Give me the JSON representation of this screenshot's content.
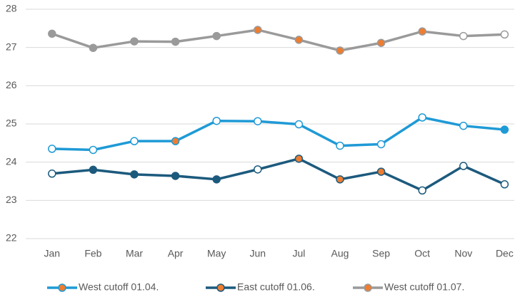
{
  "chart_data": {
    "type": "line",
    "categories": [
      "Jan",
      "Feb",
      "Mar",
      "Apr",
      "May",
      "Jun",
      "Jul",
      "Aug",
      "Sep",
      "Oct",
      "Nov",
      "Dec"
    ],
    "series": [
      {
        "name": "West cutoff 01.04.",
        "color": "#1f9ad6",
        "legend_marker_color": "#ed7d31",
        "values": [
          24.35,
          24.32,
          24.55,
          24.55,
          25.08,
          25.07,
          24.99,
          24.43,
          24.47,
          25.17,
          24.95,
          24.85
        ],
        "marker_colors": [
          "#ffffff",
          "#ffffff",
          "#ffffff",
          "#ed7d31",
          "#ffffff",
          "#ffffff",
          "#ffffff",
          "#ffffff",
          "#ffffff",
          "#ffffff",
          "#ffffff",
          "#1f9ad6"
        ]
      },
      {
        "name": "East cutoff 01.06.",
        "color": "#1c5a7d",
        "legend_marker_color": "#ed7d31",
        "values": [
          23.7,
          23.8,
          23.68,
          23.64,
          23.55,
          23.81,
          24.09,
          23.55,
          23.75,
          23.26,
          23.9,
          23.42
        ],
        "marker_colors": [
          "#ffffff",
          "#1c5a7d",
          "#1c5a7d",
          "#1c5a7d",
          "#1c5a7d",
          "#ffffff",
          "#ed7d31",
          "#ed7d31",
          "#ed7d31",
          "#ffffff",
          "#ffffff",
          "#ffffff"
        ]
      },
      {
        "name": "West cutoff 01.07.",
        "color": "#9a9a9a",
        "legend_marker_color": "#ed7d31",
        "values": [
          27.36,
          26.99,
          27.16,
          27.15,
          27.3,
          27.46,
          27.2,
          26.92,
          27.12,
          27.42,
          27.3,
          27.34
        ],
        "marker_colors": [
          "#9a9a9a",
          "#9a9a9a",
          "#9a9a9a",
          "#9a9a9a",
          "#9a9a9a",
          "#ed7d31",
          "#ed7d31",
          "#ed7d31",
          "#ed7d31",
          "#ed7d31",
          "#ffffff",
          "#ffffff"
        ]
      }
    ],
    "ylim": [
      22,
      28
    ],
    "yticks": [
      22,
      23,
      24,
      25,
      26,
      27,
      28
    ],
    "grid": true,
    "legend": "bottom"
  }
}
